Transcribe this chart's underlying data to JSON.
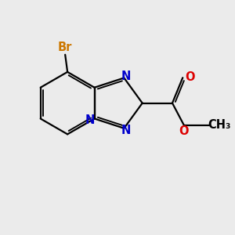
{
  "background_color": "#ebebeb",
  "bond_color": "#000000",
  "nitrogen_color": "#0000cc",
  "bromine_color": "#cc7700",
  "oxygen_color": "#dd0000",
  "figsize": [
    3.0,
    3.0
  ],
  "dpi": 100,
  "xlim": [
    0,
    10
  ],
  "ylim": [
    0,
    10
  ]
}
